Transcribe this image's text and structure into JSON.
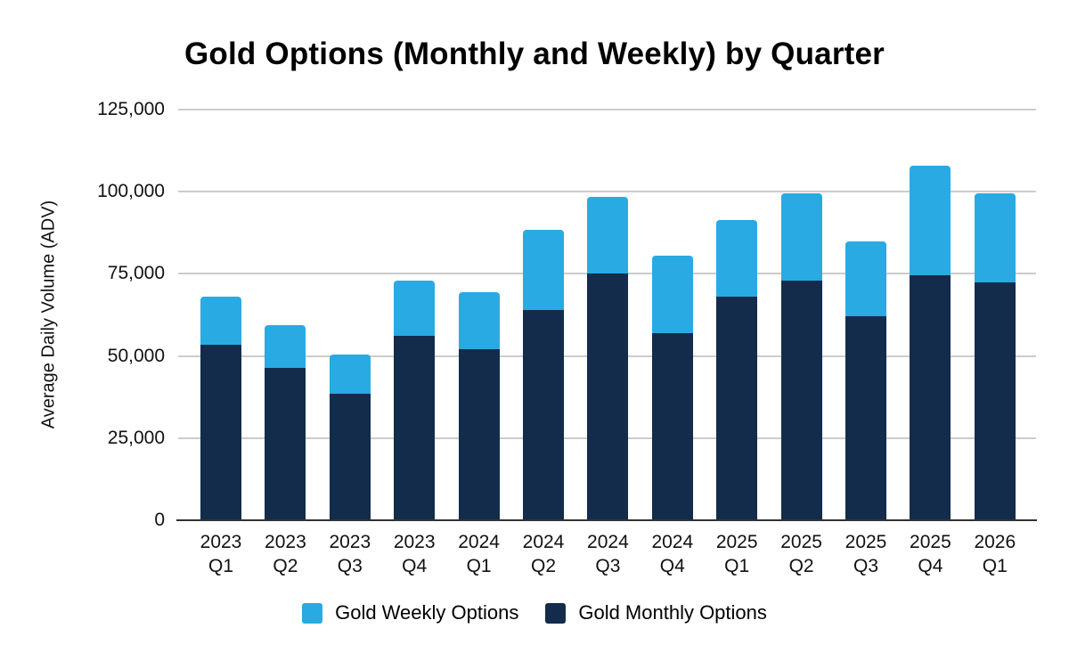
{
  "chart_data": {
    "type": "bar",
    "stacked": true,
    "title": "Gold Options (Monthly and Weekly) by Quarter",
    "ylabel": "Average Daily Volume (ADV)",
    "xlabel": "",
    "ylim": [
      0,
      125000
    ],
    "yticks": [
      0,
      25000,
      50000,
      75000,
      100000,
      125000
    ],
    "ytick_labels": [
      "0",
      "25,000",
      "50,000",
      "75,000",
      "100,000",
      "125,000"
    ],
    "grid": true,
    "legend_position": "bottom",
    "categories": [
      [
        "2023",
        "Q1"
      ],
      [
        "2023",
        "Q2"
      ],
      [
        "2023",
        "Q3"
      ],
      [
        "2023",
        "Q4"
      ],
      [
        "2024",
        "Q1"
      ],
      [
        "2024",
        "Q2"
      ],
      [
        "2024",
        "Q3"
      ],
      [
        "2024",
        "Q4"
      ],
      [
        "2025",
        "Q1"
      ],
      [
        "2025",
        "Q2"
      ],
      [
        "2025",
        "Q3"
      ],
      [
        "2025",
        "Q4"
      ],
      [
        "2026",
        "Q1"
      ]
    ],
    "series": [
      {
        "name": "Gold Weekly Options",
        "color": "#29AAE2",
        "values": [
          14500,
          13000,
          12000,
          17000,
          17500,
          24500,
          23500,
          23500,
          23500,
          26500,
          23000,
          33500,
          27000
        ]
      },
      {
        "name": "Gold Monthly Options",
        "color": "#132C4B",
        "values": [
          53500,
          46500,
          38500,
          56000,
          52000,
          64000,
          75000,
          57000,
          68000,
          73000,
          62000,
          74500,
          72500
        ]
      }
    ]
  },
  "colors": {
    "gridline": "#cccccc",
    "axis_line": "#333333",
    "text": "#111111",
    "background": "#ffffff"
  }
}
